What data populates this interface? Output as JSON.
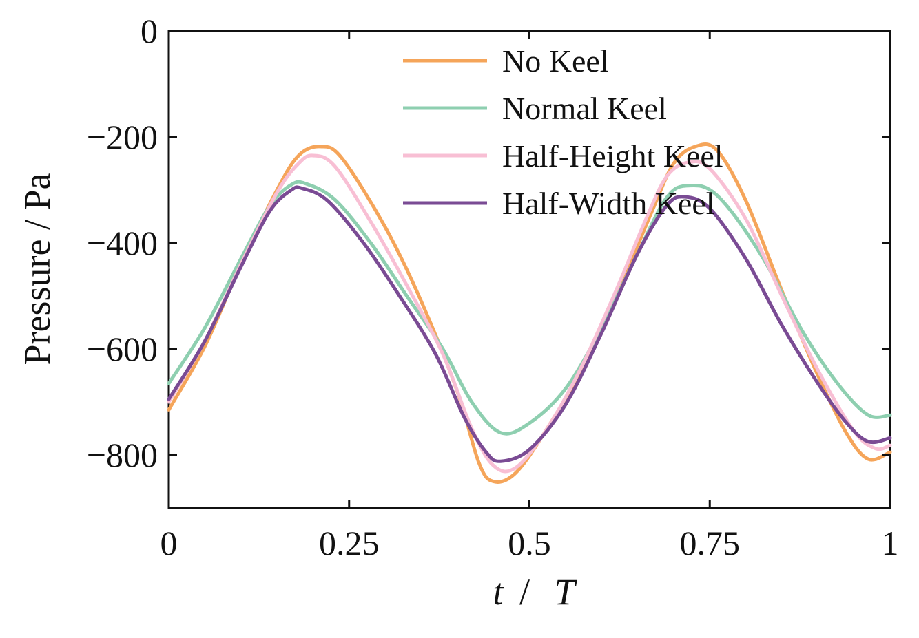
{
  "chart_data": {
    "type": "line",
    "title": "",
    "xlabel_italic_1": "t",
    "xlabel_sep": "/",
    "xlabel_italic_2": "T",
    "ylabel": "Pressure / Pa",
    "xlim": [
      0,
      1
    ],
    "ylim": [
      -900,
      0
    ],
    "xticks": [
      0,
      0.25,
      0.5,
      0.75,
      1
    ],
    "xtick_labels": [
      "0",
      "0.25",
      "0.5",
      "0.75",
      "1"
    ],
    "yticks": [
      0,
      -200,
      -400,
      -600,
      -800
    ],
    "ytick_labels": [
      "0",
      "−200",
      "−400",
      "−600",
      "−800"
    ],
    "legend_position": "top-center",
    "grid": false,
    "series": [
      {
        "name": "No Keel",
        "color": "#f5a55a",
        "points": [
          [
            0,
            -715
          ],
          [
            0.05,
            -595
          ],
          [
            0.1,
            -440
          ],
          [
            0.15,
            -300
          ],
          [
            0.18,
            -235
          ],
          [
            0.21,
            -218
          ],
          [
            0.24,
            -240
          ],
          [
            0.3,
            -370
          ],
          [
            0.35,
            -510
          ],
          [
            0.4,
            -680
          ],
          [
            0.43,
            -815
          ],
          [
            0.45,
            -850
          ],
          [
            0.48,
            -835
          ],
          [
            0.52,
            -760
          ],
          [
            0.58,
            -620
          ],
          [
            0.63,
            -470
          ],
          [
            0.67,
            -340
          ],
          [
            0.7,
            -250
          ],
          [
            0.73,
            -218
          ],
          [
            0.76,
            -225
          ],
          [
            0.8,
            -320
          ],
          [
            0.85,
            -490
          ],
          [
            0.9,
            -650
          ],
          [
            0.94,
            -760
          ],
          [
            0.97,
            -808
          ],
          [
            1.0,
            -795
          ]
        ]
      },
      {
        "name": "Normal Keel",
        "color": "#8ecfb0",
        "points": [
          [
            0,
            -665
          ],
          [
            0.05,
            -560
          ],
          [
            0.1,
            -430
          ],
          [
            0.14,
            -330
          ],
          [
            0.17,
            -290
          ],
          [
            0.19,
            -288
          ],
          [
            0.23,
            -318
          ],
          [
            0.28,
            -400
          ],
          [
            0.33,
            -500
          ],
          [
            0.38,
            -600
          ],
          [
            0.42,
            -700
          ],
          [
            0.46,
            -758
          ],
          [
            0.5,
            -740
          ],
          [
            0.55,
            -675
          ],
          [
            0.6,
            -560
          ],
          [
            0.65,
            -420
          ],
          [
            0.69,
            -315
          ],
          [
            0.72,
            -292
          ],
          [
            0.76,
            -310
          ],
          [
            0.82,
            -420
          ],
          [
            0.88,
            -570
          ],
          [
            0.93,
            -670
          ],
          [
            0.97,
            -725
          ],
          [
            1.0,
            -725
          ]
        ]
      },
      {
        "name": "Half-Height Keel",
        "color": "#f8bfd4",
        "points": [
          [
            0,
            -700
          ],
          [
            0.05,
            -585
          ],
          [
            0.1,
            -440
          ],
          [
            0.15,
            -305
          ],
          [
            0.18,
            -250
          ],
          [
            0.2,
            -235
          ],
          [
            0.23,
            -255
          ],
          [
            0.28,
            -360
          ],
          [
            0.33,
            -480
          ],
          [
            0.38,
            -610
          ],
          [
            0.42,
            -750
          ],
          [
            0.45,
            -820
          ],
          [
            0.48,
            -825
          ],
          [
            0.52,
            -760
          ],
          [
            0.57,
            -640
          ],
          [
            0.62,
            -490
          ],
          [
            0.66,
            -360
          ],
          [
            0.69,
            -275
          ],
          [
            0.72,
            -248
          ],
          [
            0.75,
            -260
          ],
          [
            0.8,
            -355
          ],
          [
            0.85,
            -500
          ],
          [
            0.9,
            -640
          ],
          [
            0.95,
            -755
          ],
          [
            0.98,
            -788
          ],
          [
            1.0,
            -782
          ]
        ]
      },
      {
        "name": "Half-Width Keel",
        "color": "#7a4b94",
        "points": [
          [
            0,
            -695
          ],
          [
            0.05,
            -585
          ],
          [
            0.1,
            -445
          ],
          [
            0.14,
            -340
          ],
          [
            0.17,
            -300
          ],
          [
            0.185,
            -297
          ],
          [
            0.22,
            -320
          ],
          [
            0.27,
            -400
          ],
          [
            0.32,
            -500
          ],
          [
            0.37,
            -610
          ],
          [
            0.41,
            -730
          ],
          [
            0.44,
            -795
          ],
          [
            0.46,
            -812
          ],
          [
            0.5,
            -790
          ],
          [
            0.55,
            -705
          ],
          [
            0.6,
            -570
          ],
          [
            0.65,
            -420
          ],
          [
            0.69,
            -330
          ],
          [
            0.715,
            -313
          ],
          [
            0.75,
            -335
          ],
          [
            0.8,
            -430
          ],
          [
            0.85,
            -555
          ],
          [
            0.9,
            -665
          ],
          [
            0.94,
            -740
          ],
          [
            0.97,
            -775
          ],
          [
            1.0,
            -768
          ]
        ]
      }
    ]
  }
}
